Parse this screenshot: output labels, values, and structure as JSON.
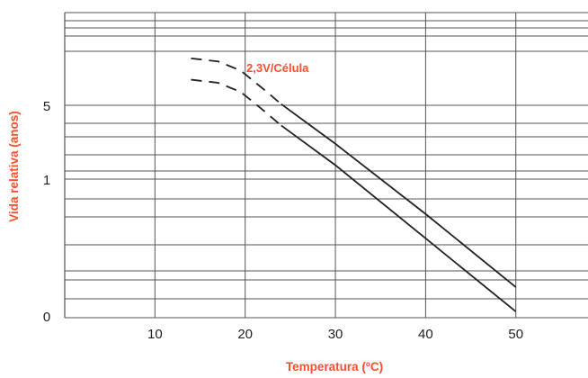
{
  "chart_data": {
    "type": "line",
    "title": "",
    "xlabel": "Temperatura (ºC)",
    "ylabel": "Vida relativa (anos)",
    "xlim": [
      0,
      58
    ],
    "xticks": [
      10,
      20,
      30,
      40,
      50
    ],
    "xtick_labels": [
      "10",
      "20",
      "30",
      "40",
      "50"
    ],
    "y_scale": "log-like (non-uniform)",
    "ytick_labels": [
      "5",
      "1",
      "0"
    ],
    "grid": true,
    "annotation": "2,3V/Célula",
    "series": [
      {
        "x": [
          14,
          17,
          19.5,
          22,
          24,
          30,
          40,
          50
        ],
        "y_relative_position": [
          0.78,
          0.77,
          0.74,
          0.68,
          0.63,
          0.5,
          0.26,
          0.02
        ],
        "dashed_until_x": 24
      },
      {
        "x": [
          14,
          17,
          19.5,
          22,
          24,
          30,
          40,
          50
        ],
        "y_relative_position": [
          0.85,
          0.84,
          0.81,
          0.75,
          0.7,
          0.57,
          0.34,
          0.1
        ],
        "dashed_until_x": 24
      }
    ],
    "colors": {
      "accent": "#ff4d2e",
      "line": "#222222",
      "grid": "#555555"
    }
  }
}
